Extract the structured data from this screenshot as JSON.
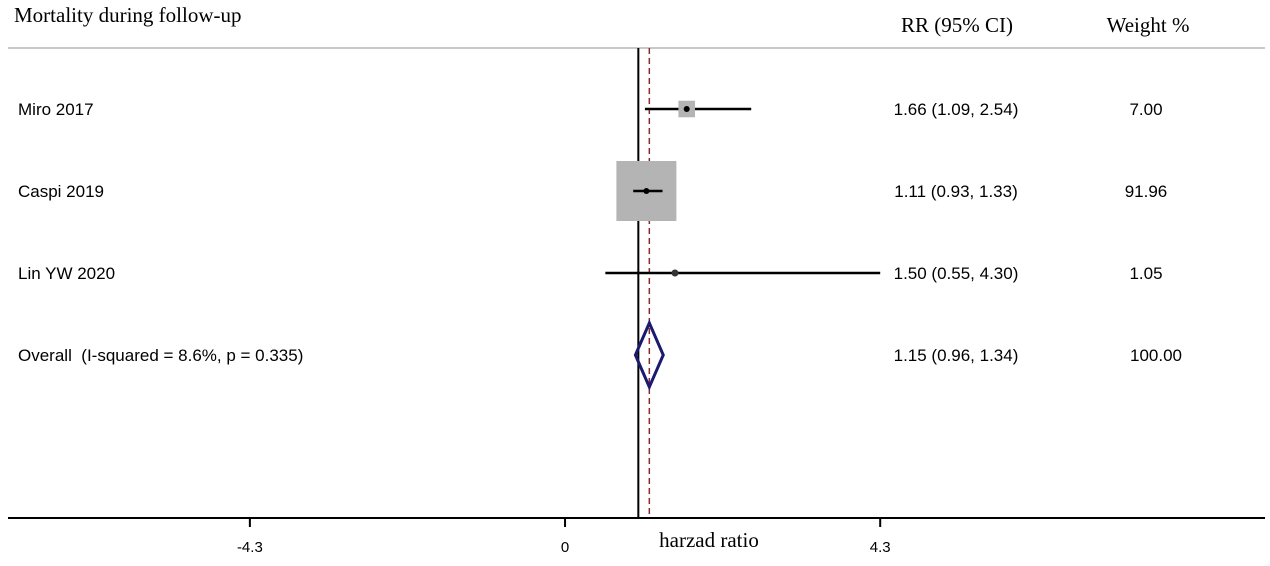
{
  "chart_data": {
    "type": "forest",
    "title": "Mortality during follow-up",
    "header_rr": "RR (95% CI)",
    "header_weight": "Weight %",
    "xlabel": "harzad ratio",
    "xlim": [
      -7.6,
      9.55
    ],
    "xticks": [
      {
        "value": -4.3,
        "label": "-4.3"
      },
      {
        "value": 0,
        "label": "0"
      },
      {
        "value": 4.3,
        "label": "4.3"
      }
    ],
    "null_line": 1,
    "overall_line": 1.15,
    "studies": [
      {
        "label": "Miro 2017",
        "rr": 1.66,
        "lo": 1.09,
        "hi": 2.54,
        "ci_text": "1.66 (1.09, 2.54)",
        "weight": 7.0,
        "weight_text": "7.00"
      },
      {
        "label": "Caspi 2019",
        "rr": 1.11,
        "lo": 0.93,
        "hi": 1.33,
        "ci_text": "1.11 (0.93, 1.33)",
        "weight": 91.96,
        "weight_text": "91.96"
      },
      {
        "label": "Lin YW 2020",
        "rr": 1.5,
        "lo": 0.55,
        "hi": 4.3,
        "ci_text": "1.50 (0.55, 4.30)",
        "weight": 1.05,
        "weight_text": "1.05"
      }
    ],
    "overall": {
      "label": "Overall  (I-squared = 8.6%, p = 0.335)",
      "rr": 1.15,
      "lo": 0.96,
      "hi": 1.34,
      "ci_text": "1.15 (0.96, 1.34)",
      "weight_text": "100.00"
    },
    "colors": {
      "box": "#b4b4b4",
      "line": "#000000",
      "diamond": "#1a1a6e",
      "dashed": "#8b2a2a",
      "rule": "#c8c8c8"
    }
  }
}
